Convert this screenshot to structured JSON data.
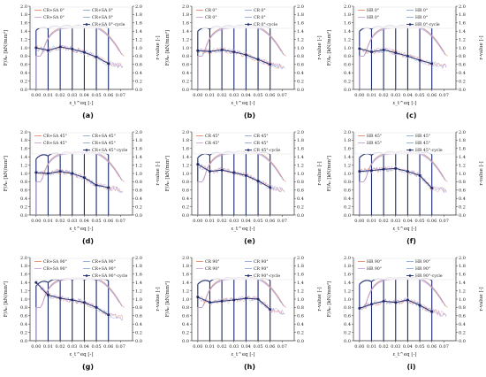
{
  "figure": {
    "colors": {
      "cycle_line": "#1b2a6b",
      "monotonic_1": "#e8896a",
      "monotonic_2": "#8fa8d8",
      "monotonic_3": "#c9a0d9",
      "axes": "#333333"
    }
  },
  "chart_data": [
    {
      "type": "line",
      "caption": "(a)",
      "legend": [
        "CR+SA 0°",
        "CR+SA 0°",
        "CR+SA 0°",
        "CR+SA 0°",
        "CR+SA 0°-cycle"
      ],
      "legend_placement": "top",
      "xlabel": "ε_t^eq [-]",
      "ylabel_left": "F/A₀ [kN/mm²]",
      "ylabel_right": "r-value [-]",
      "xlim": [
        -0.005,
        0.08
      ],
      "ylim_left": [
        0,
        2.0
      ],
      "ylim_right": [
        0,
        2.0
      ],
      "xticks": [
        0.0,
        0.01,
        0.02,
        0.03,
        0.04,
        0.05,
        0.06,
        0.07
      ],
      "yticks_left": [
        0,
        0.2,
        0.4,
        0.6,
        0.8,
        1.0,
        1.2,
        1.4,
        1.6,
        1.8,
        2.0
      ],
      "yticks_right": [
        0,
        0.2,
        0.4,
        0.6,
        0.8,
        1.0,
        1.2,
        1.4,
        1.6,
        1.8,
        2.0
      ],
      "cycle_x": [
        0.0,
        0.01,
        0.02,
        0.03,
        0.04,
        0.05,
        0.06
      ],
      "cycle_peak": [
        1.42,
        1.46,
        1.49,
        1.5,
        1.5,
        1.49,
        1.48
      ],
      "r_value_cycle": [
        1.0,
        0.94,
        1.02,
        0.97,
        0.89,
        0.78,
        0.62
      ]
    },
    {
      "type": "line",
      "caption": "(b)",
      "legend": [
        "CR 0°",
        "CR 0°",
        "CR 0°",
        "CR 0°",
        "CR 0°-cycle"
      ],
      "legend_placement": "top",
      "xlabel": "ε_t^eq [-]",
      "ylabel_left": "F/A₀ [kN/mm²]",
      "ylabel_right": "r-value [-]",
      "xlim": [
        -0.005,
        0.08
      ],
      "ylim_left": [
        0,
        2.0
      ],
      "ylim_right": [
        0,
        2.0
      ],
      "xticks": [
        0.0,
        0.01,
        0.02,
        0.03,
        0.04,
        0.05,
        0.06,
        0.07
      ],
      "yticks_left": [
        0,
        0.2,
        0.4,
        0.6,
        0.8,
        1.0,
        1.2,
        1.4,
        1.6,
        1.8,
        2.0
      ],
      "yticks_right": [
        0,
        0.2,
        0.4,
        0.6,
        0.8,
        1.0,
        1.2,
        1.4,
        1.6,
        1.8,
        2.0
      ],
      "cycle_x": [
        0.0,
        0.01,
        0.02,
        0.03,
        0.04,
        0.05,
        0.06
      ],
      "cycle_peak": [
        1.4,
        1.45,
        1.48,
        1.5,
        1.5,
        1.49,
        1.47
      ],
      "r_value_cycle": [
        0.93,
        0.91,
        0.95,
        0.9,
        0.83,
        0.72,
        0.6
      ]
    },
    {
      "type": "line",
      "caption": "(c)",
      "legend": [
        "HR 0°",
        "HR 0°",
        "HR 0°",
        "HR 0°",
        "HR 0°-cycle"
      ],
      "legend_placement": "top",
      "xlabel": "ε_t^eq [-]",
      "ylabel_left": "F/A₀ [kN/mm²]",
      "ylabel_right": "r-value [-]",
      "xlim": [
        -0.005,
        0.08
      ],
      "ylim_left": [
        0,
        2.0
      ],
      "ylim_right": [
        0,
        2.0
      ],
      "xticks": [
        0.0,
        0.01,
        0.02,
        0.03,
        0.04,
        0.05,
        0.06,
        0.07
      ],
      "yticks_left": [
        0,
        0.2,
        0.4,
        0.6,
        0.8,
        1.0,
        1.2,
        1.4,
        1.6,
        1.8,
        2.0
      ],
      "yticks_right": [
        0,
        0.2,
        0.4,
        0.6,
        0.8,
        1.0,
        1.2,
        1.4,
        1.6,
        1.8,
        2.0
      ],
      "cycle_x": [
        0.0,
        0.01,
        0.02,
        0.03,
        0.04,
        0.05,
        0.06
      ],
      "cycle_peak": [
        1.4,
        1.45,
        1.48,
        1.5,
        1.5,
        1.49,
        1.47
      ],
      "r_value_cycle": [
        0.98,
        0.9,
        0.95,
        0.88,
        0.8,
        0.7,
        0.62
      ]
    },
    {
      "type": "line",
      "caption": "(d)",
      "legend": [
        "CR+SA 45°",
        "CR+SA 45°",
        "CR+SA 45°",
        "CR+SA 45°",
        "CR+SA 45°-cycle"
      ],
      "legend_placement": "top",
      "xlabel": "ε_t^eq [-]",
      "ylabel_left": "F/A₀ [kN/mm²]",
      "ylabel_right": "r-value [-]",
      "xlim": [
        -0.005,
        0.08
      ],
      "ylim_left": [
        0,
        2.0
      ],
      "ylim_right": [
        0,
        2.0
      ],
      "xticks": [
        0.0,
        0.01,
        0.02,
        0.03,
        0.04,
        0.05,
        0.06,
        0.07
      ],
      "yticks_left": [
        0,
        0.2,
        0.4,
        0.6,
        0.8,
        1.0,
        1.2,
        1.4,
        1.6,
        1.8,
        2.0
      ],
      "yticks_right": [
        0,
        0.2,
        0.4,
        0.6,
        0.8,
        1.0,
        1.2,
        1.4,
        1.6,
        1.8,
        2.0
      ],
      "cycle_x": [
        0.0,
        0.01,
        0.02,
        0.03,
        0.04,
        0.05,
        0.06
      ],
      "cycle_peak": [
        1.35,
        1.42,
        1.46,
        1.48,
        1.48,
        1.47,
        1.45
      ],
      "r_value_cycle": [
        1.02,
        1.0,
        1.05,
        1.0,
        0.9,
        0.72,
        0.66
      ]
    },
    {
      "type": "line",
      "caption": "(e)",
      "legend": [
        "CR 45°",
        "CR 45°",
        "CR 45°",
        "CR 45°",
        "CR 45°-cycle"
      ],
      "legend_placement": "top",
      "xlabel": "ε_t^eq [-]",
      "ylabel_left": "F/A₀ [kN/mm²]",
      "ylabel_right": "r-value [-]",
      "xlim": [
        -0.005,
        0.08
      ],
      "ylim_left": [
        0,
        2.0
      ],
      "ylim_right": [
        0,
        2.0
      ],
      "xticks": [
        0.0,
        0.01,
        0.02,
        0.03,
        0.04,
        0.05,
        0.06,
        0.07
      ],
      "yticks_left": [
        0,
        0.2,
        0.4,
        0.6,
        0.8,
        1.0,
        1.2,
        1.4,
        1.6,
        1.8,
        2.0
      ],
      "yticks_right": [
        0,
        0.2,
        0.4,
        0.6,
        0.8,
        1.0,
        1.2,
        1.4,
        1.6,
        1.8,
        2.0
      ],
      "cycle_x": [
        0.0,
        0.01,
        0.02,
        0.03,
        0.04,
        0.05,
        0.06
      ],
      "cycle_peak": [
        1.38,
        1.44,
        1.47,
        1.49,
        1.49,
        1.48,
        1.46
      ],
      "r_value_cycle": [
        1.22,
        1.05,
        1.08,
        1.02,
        0.95,
        0.82,
        0.66
      ]
    },
    {
      "type": "line",
      "caption": "(f)",
      "legend": [
        "HR 45°",
        "HR 45°",
        "HR 45°",
        "HR 45°",
        "HR 45°-cycle"
      ],
      "legend_placement": "top",
      "xlabel": "ε_t^eq [-]",
      "ylabel_left": "F/A₀ [kN/mm²]",
      "ylabel_right": "r-value [-]",
      "xlim": [
        -0.005,
        0.08
      ],
      "ylim_left": [
        0,
        2.0
      ],
      "ylim_right": [
        0,
        2.0
      ],
      "xticks": [
        0.0,
        0.01,
        0.02,
        0.03,
        0.04,
        0.05,
        0.06,
        0.07
      ],
      "yticks_left": [
        0,
        0.2,
        0.4,
        0.6,
        0.8,
        1.0,
        1.2,
        1.4,
        1.6,
        1.8,
        2.0
      ],
      "yticks_right": [
        0,
        0.2,
        0.4,
        0.6,
        0.8,
        1.0,
        1.2,
        1.4,
        1.6,
        1.8,
        2.0
      ],
      "cycle_x": [
        0.0,
        0.01,
        0.02,
        0.03,
        0.04,
        0.05,
        0.06
      ],
      "cycle_peak": [
        1.38,
        1.44,
        1.47,
        1.49,
        1.49,
        1.48,
        1.46
      ],
      "r_value_cycle": [
        1.05,
        1.07,
        1.1,
        1.12,
        1.05,
        0.95,
        0.65
      ]
    },
    {
      "type": "line",
      "caption": "(g)",
      "legend": [
        "CR+SA 90°",
        "CR+SA 90°",
        "CR+SA 90°",
        "CR+SA 90°",
        "CR+SA 90°-cycle"
      ],
      "legend_placement": "top",
      "xlabel": "ε_t^eq [-]",
      "ylabel_left": "F/A₀ [kN/mm²]",
      "ylabel_right": "r-value [-]",
      "xlim": [
        -0.005,
        0.08
      ],
      "ylim_left": [
        0,
        2.0
      ],
      "ylim_right": [
        0,
        2.0
      ],
      "xticks": [
        0.0,
        0.01,
        0.02,
        0.03,
        0.04,
        0.05,
        0.06,
        0.07
      ],
      "yticks_left": [
        0,
        0.2,
        0.4,
        0.6,
        0.8,
        1.0,
        1.2,
        1.4,
        1.6,
        1.8,
        2.0
      ],
      "yticks_right": [
        0,
        0.2,
        0.4,
        0.6,
        0.8,
        1.0,
        1.2,
        1.4,
        1.6,
        1.8,
        2.0
      ],
      "cycle_x": [
        0.0,
        0.01,
        0.02,
        0.03,
        0.04,
        0.05,
        0.06
      ],
      "cycle_peak": [
        1.32,
        1.4,
        1.44,
        1.46,
        1.46,
        1.45,
        1.44
      ],
      "r_value_cycle": [
        1.4,
        1.1,
        1.02,
        0.98,
        0.92,
        0.8,
        0.62
      ]
    },
    {
      "type": "line",
      "caption": "(h)",
      "legend": [
        "CR 90°",
        "CR 90°",
        "CR 90°",
        "CR 90°",
        "CR 90°-cycle"
      ],
      "legend_placement": "top",
      "xlabel": "ε_t^eq [-]",
      "ylabel_left": "F/A₀ [kN/mm²]",
      "ylabel_right": "r-value [-]",
      "xlim": [
        -0.005,
        0.08
      ],
      "ylim_left": [
        0,
        2.0
      ],
      "ylim_right": [
        0,
        2.0
      ],
      "xticks": [
        0.0,
        0.01,
        0.02,
        0.03,
        0.04,
        0.05,
        0.06,
        0.07
      ],
      "yticks_left": [
        0,
        0.2,
        0.4,
        0.6,
        0.8,
        1.0,
        1.2,
        1.4,
        1.6,
        1.8,
        2.0
      ],
      "yticks_right": [
        0,
        0.2,
        0.4,
        0.6,
        0.8,
        1.0,
        1.2,
        1.4,
        1.6,
        1.8,
        2.0
      ],
      "cycle_x": [
        0.0,
        0.01,
        0.02,
        0.03,
        0.04,
        0.05,
        0.06
      ],
      "cycle_peak": [
        1.36,
        1.42,
        1.46,
        1.48,
        1.48,
        1.47,
        1.45
      ],
      "r_value_cycle": [
        1.05,
        0.92,
        0.95,
        0.98,
        1.02,
        1.0,
        0.75
      ]
    },
    {
      "type": "line",
      "caption": "(i)",
      "legend": [
        "HR 90°",
        "HR 90°",
        "HR 90°",
        "HR 90°",
        "HR 90°-cycle"
      ],
      "legend_placement": "top",
      "xlabel": "ε_t^eq [-]",
      "ylabel_left": "F/A₀ [kN/mm²]",
      "ylabel_right": "r-value [-]",
      "xlim": [
        -0.005,
        0.08
      ],
      "ylim_left": [
        0,
        2.0
      ],
      "ylim_right": [
        0,
        2.0
      ],
      "xticks": [
        0.0,
        0.01,
        0.02,
        0.03,
        0.04,
        0.05,
        0.06,
        0.07
      ],
      "yticks_left": [
        0,
        0.2,
        0.4,
        0.6,
        0.8,
        1.0,
        1.2,
        1.4,
        1.6,
        1.8,
        2.0
      ],
      "yticks_right": [
        0,
        0.2,
        0.4,
        0.6,
        0.8,
        1.0,
        1.2,
        1.4,
        1.6,
        1.8,
        2.0
      ],
      "cycle_x": [
        0.0,
        0.01,
        0.02,
        0.03,
        0.04,
        0.05,
        0.06
      ],
      "cycle_peak": [
        1.36,
        1.42,
        1.46,
        1.48,
        1.48,
        1.47,
        1.45
      ],
      "r_value_cycle": [
        0.78,
        0.88,
        0.95,
        0.92,
        0.98,
        0.85,
        0.7
      ]
    }
  ]
}
